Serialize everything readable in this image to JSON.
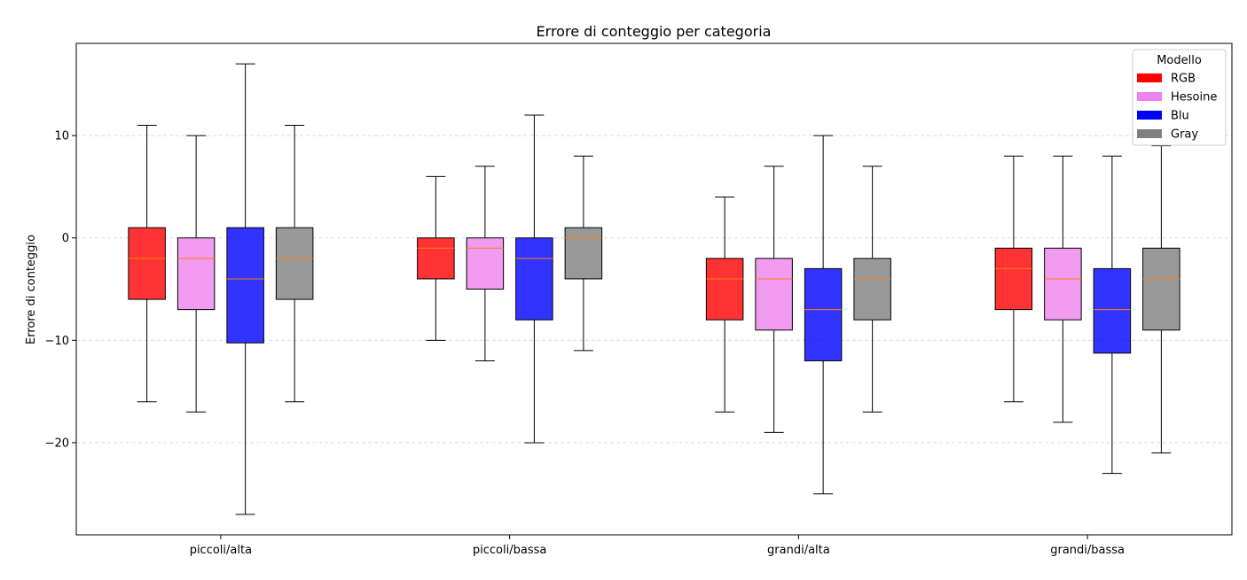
{
  "chart_data": {
    "type": "box",
    "title": "Errore di conteggio per categoria",
    "ylabel": "Errore di conteggio",
    "xlabel": "",
    "ylim": [
      -29,
      19
    ],
    "yticks": [
      10,
      0,
      -10,
      -20
    ],
    "ytick_labels": [
      "10",
      "0",
      "−10",
      "−20"
    ],
    "grid": "y-dashed",
    "categories": [
      "piccoli/alta",
      "piccoli/bassa",
      "grandi/alta",
      "grandi/bassa"
    ],
    "legend": {
      "title": "Modello",
      "position": "top-right"
    },
    "series": [
      {
        "name": "RGB",
        "color": "#ff0000",
        "boxes": [
          {
            "whislo": -16,
            "q1": -6,
            "med": -2,
            "q3": 1,
            "whishi": 11
          },
          {
            "whislo": -10,
            "q1": -4,
            "med": -1,
            "q3": 0,
            "whishi": 6
          },
          {
            "whislo": -17,
            "q1": -8,
            "med": -4,
            "q3": -2,
            "whishi": 4
          },
          {
            "whislo": -16,
            "q1": -7,
            "med": -3,
            "q3": -1,
            "whishi": 8
          }
        ]
      },
      {
        "name": "Hesoine",
        "color": "#ee82ee",
        "boxes": [
          {
            "whislo": -17,
            "q1": -7,
            "med": -2,
            "q3": 0,
            "whishi": 10
          },
          {
            "whislo": -12,
            "q1": -5,
            "med": -1,
            "q3": 0,
            "whishi": 7
          },
          {
            "whislo": -19,
            "q1": -9,
            "med": -4,
            "q3": -2,
            "whishi": 7
          },
          {
            "whislo": -18,
            "q1": -8,
            "med": -4,
            "q3": -1,
            "whishi": 8
          }
        ]
      },
      {
        "name": "Blu",
        "color": "#0000ff",
        "boxes": [
          {
            "whislo": -27,
            "q1": -10.25,
            "med": -4,
            "q3": 1,
            "whishi": 17
          },
          {
            "whislo": -20,
            "q1": -8,
            "med": -2,
            "q3": 0,
            "whishi": 12
          },
          {
            "whislo": -25,
            "q1": -12,
            "med": -7,
            "q3": -3,
            "whishi": 10
          },
          {
            "whislo": -23,
            "q1": -11.25,
            "med": -7,
            "q3": -3,
            "whishi": 8
          }
        ]
      },
      {
        "name": "Gray",
        "color": "#808080",
        "boxes": [
          {
            "whislo": -16,
            "q1": -6,
            "med": -2,
            "q3": 1,
            "whishi": 11
          },
          {
            "whislo": -11,
            "q1": -4,
            "med": 0,
            "q3": 1,
            "whishi": 8
          },
          {
            "whislo": -17,
            "q1": -8,
            "med": -4,
            "q3": -2,
            "whishi": 7
          },
          {
            "whislo": -21,
            "q1": -9,
            "med": -4,
            "q3": -1,
            "whishi": 9
          }
        ]
      }
    ]
  }
}
